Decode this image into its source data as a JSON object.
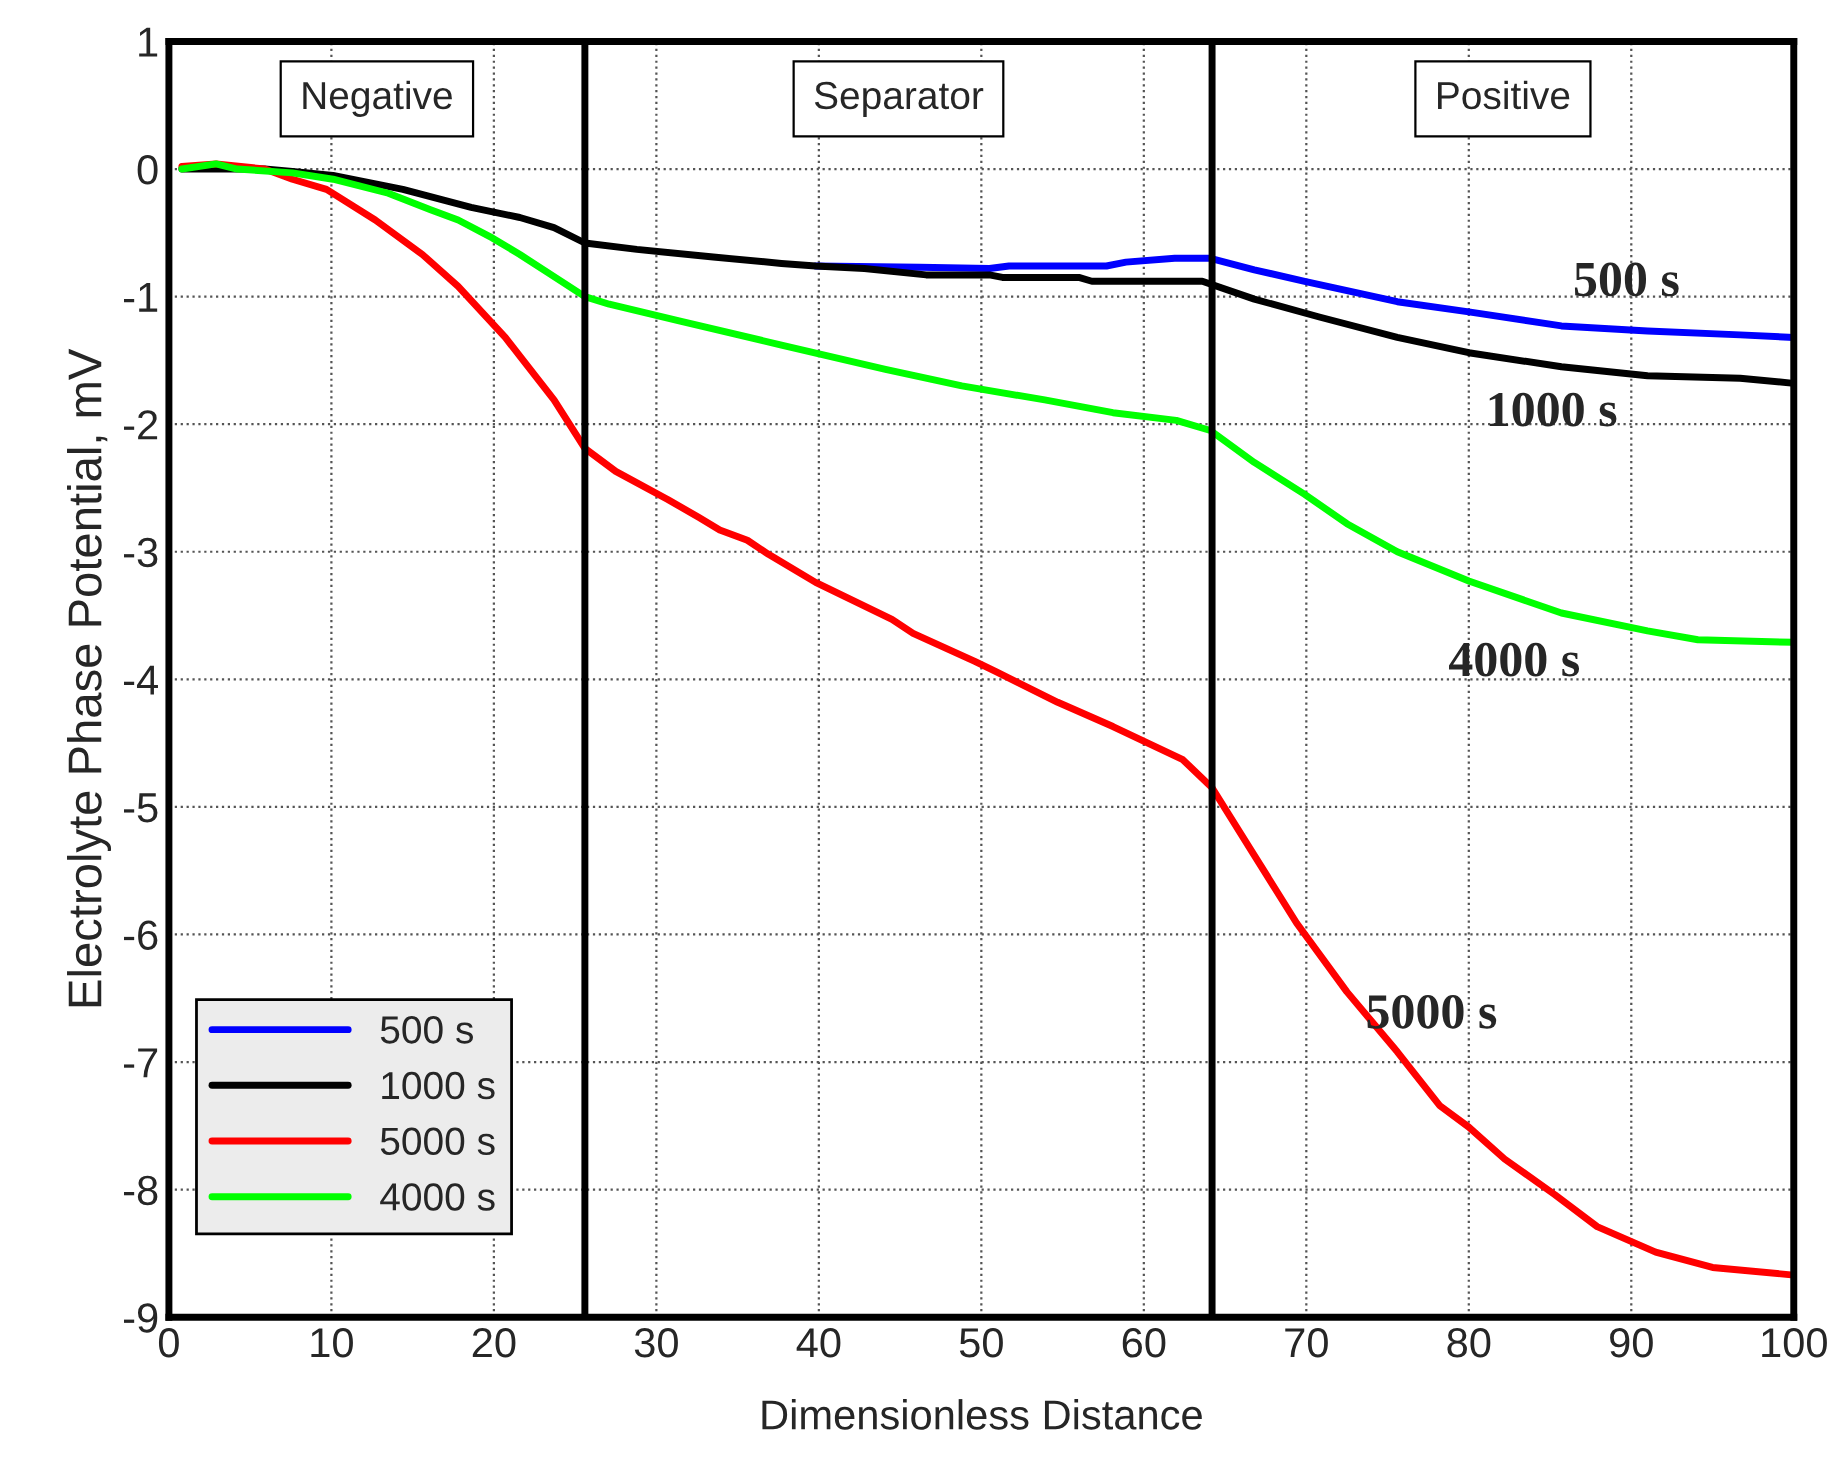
{
  "chart_data": {
    "type": "line",
    "xlabel": "Dimensionless Distance",
    "ylabel": "Electrolyte Phase Potential, mV",
    "xlim": [
      0,
      100
    ],
    "ylim": [
      -9,
      1
    ],
    "xticks": [
      0,
      10,
      20,
      30,
      40,
      50,
      60,
      70,
      80,
      90,
      100
    ],
    "yticks": [
      -9,
      -8,
      -7,
      -6,
      -5,
      -4,
      -3,
      -2,
      -1,
      0,
      1
    ],
    "grid": true,
    "legend": "bottom left",
    "line_style": "solid",
    "marker": "none",
    "series": [
      {
        "name": "500 s",
        "color": "#0000ff",
        "x": [
          39.8,
          46.2,
          50.5,
          51.7,
          57.7,
          58.9,
          61.9,
          64.1,
          66.8,
          69.9,
          75.6,
          80.0,
          85.7,
          91.0,
          96.7,
          100
        ],
        "values": [
          -0.76,
          -0.77,
          -0.78,
          -0.76,
          -0.76,
          -0.73,
          -0.7,
          -0.7,
          -0.79,
          -0.88,
          -1.04,
          -1.12,
          -1.23,
          -1.27,
          -1.3,
          -1.32
        ]
      },
      {
        "name": "1000 s",
        "color": "#000000",
        "x": [
          0.8,
          2.9,
          5.9,
          7.6,
          10.1,
          14.4,
          18.6,
          21.6,
          23.7,
          25.6,
          28.8,
          33.5,
          37.7,
          39.8,
          42.8,
          46.6,
          50.5,
          51.3,
          56.0,
          56.8,
          63.6,
          66.8,
          70.8,
          75.6,
          80.0,
          85.7,
          91.0,
          96.7,
          100
        ],
        "values": [
          0,
          0,
          0,
          -0.02,
          -0.05,
          -0.16,
          -0.3,
          -0.38,
          -0.46,
          -0.58,
          -0.63,
          -0.69,
          -0.74,
          -0.76,
          -0.78,
          -0.83,
          -0.83,
          -0.85,
          -0.85,
          -0.88,
          -0.88,
          -1.02,
          -1.16,
          -1.32,
          -1.44,
          -1.55,
          -1.62,
          -1.64,
          -1.68
        ]
      },
      {
        "name": "5000 s",
        "color": "#ff0000",
        "x": [
          0.8,
          2.9,
          5.9,
          7.6,
          9.7,
          12.7,
          15.6,
          17.8,
          20.7,
          23.7,
          25.6,
          27.5,
          30.7,
          32.6,
          33.9,
          35.6,
          36.9,
          39.8,
          44.5,
          45.8,
          49.6,
          50.9,
          54.7,
          58.1,
          62.4,
          64.2,
          66.8,
          69.4,
          72.5,
          75.6,
          78.2,
          80.0,
          82.2,
          85.3,
          87.9,
          91.5,
          95.0,
          100
        ],
        "values": [
          0.02,
          0.04,
          0,
          -0.08,
          -0.16,
          -0.4,
          -0.67,
          -0.92,
          -1.32,
          -1.81,
          -2.19,
          -2.37,
          -2.59,
          -2.73,
          -2.83,
          -2.91,
          -3.02,
          -3.24,
          -3.53,
          -3.64,
          -3.86,
          -3.94,
          -4.18,
          -4.37,
          -4.63,
          -4.85,
          -5.38,
          -5.91,
          -6.45,
          -6.92,
          -7.34,
          -7.51,
          -7.76,
          -8.04,
          -8.29,
          -8.49,
          -8.61,
          -8.67
        ]
      },
      {
        "name": "4000 s",
        "color": "#00ff00",
        "x": [
          0.8,
          2.9,
          4.2,
          7.6,
          10.1,
          13.5,
          16.1,
          17.8,
          19.9,
          21.6,
          23.3,
          25.6,
          27.1,
          31.4,
          37.7,
          44.1,
          48.8,
          53.9,
          58.1,
          62.0,
          64.1,
          66.8,
          69.9,
          72.5,
          75.6,
          80.0,
          85.7,
          91.0,
          94.1,
          100
        ],
        "values": [
          0,
          0.04,
          0,
          -0.03,
          -0.08,
          -0.19,
          -0.32,
          -0.4,
          -0.54,
          -0.67,
          -0.81,
          -1.0,
          -1.06,
          -1.19,
          -1.38,
          -1.57,
          -1.7,
          -1.81,
          -1.91,
          -1.97,
          -2.05,
          -2.3,
          -2.55,
          -2.78,
          -3.0,
          -3.23,
          -3.48,
          -3.62,
          -3.69,
          -3.71
        ]
      }
    ],
    "ref_lines": [
      {
        "axis": "x",
        "value": 25.6,
        "color": "#000000"
      },
      {
        "axis": "x",
        "value": 64.2,
        "color": "#000000"
      }
    ],
    "annotations": [
      "Negative",
      "Separator",
      "Positive",
      "500 s",
      "1000 s",
      "4000 s",
      "5000 s"
    ]
  }
}
